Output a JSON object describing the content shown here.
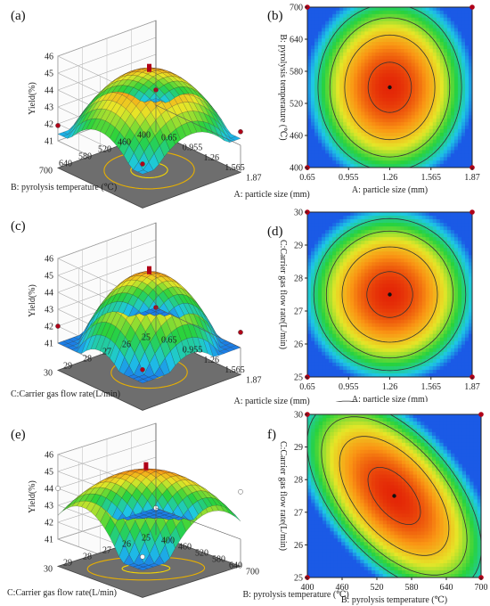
{
  "chart_data": [
    {
      "id": "a",
      "type": "surface3d",
      "panel_label": "(a)",
      "x_axis": {
        "label": "A: particle size (mm)",
        "ticks": [
          "0.65",
          "0.955",
          "1.26",
          "1.565",
          "1.87"
        ]
      },
      "y_axis": {
        "label": "B: pyrolysis temperature (℃)",
        "ticks": [
          "400",
          "460",
          "520",
          "580",
          "640",
          "700"
        ]
      },
      "z_axis": {
        "label": "Yield(%)",
        "ticks": [
          "41",
          "42",
          "43",
          "44",
          "45",
          "46"
        ]
      },
      "zlim": [
        41,
        46
      ],
      "peak": {
        "x": 1.26,
        "y": 550,
        "z": 45.2
      },
      "design_points": [
        {
          "x": 0.65,
          "y": 400,
          "z": 41.9
        },
        {
          "x": 1.87,
          "y": 400,
          "z": 41.8
        },
        {
          "x": 0.65,
          "y": 700,
          "z": 41.9
        },
        {
          "x": 1.87,
          "y": 700,
          "z": 42.0
        }
      ]
    },
    {
      "id": "b",
      "type": "contour",
      "panel_label": "(b)",
      "x_axis": {
        "label": "A: particle size (mm)",
        "ticks": [
          "0.65",
          "0.955",
          "1.26",
          "1.565",
          "1.87"
        ]
      },
      "y_axis": {
        "label": "B: pyrolysis temperature (℃)",
        "ticks": [
          "400",
          "460",
          "520",
          "580",
          "640",
          "700"
        ]
      },
      "center": {
        "x": 1.26,
        "y": 550
      },
      "color_max": "#e41f00",
      "color_min": "#1aa3e8"
    },
    {
      "id": "c",
      "type": "surface3d",
      "panel_label": "(c)",
      "x_axis": {
        "label": "A: particle size (mm)",
        "ticks": [
          "0.65",
          "0.955",
          "1.26",
          "1.565",
          "1.87"
        ]
      },
      "y_axis": {
        "label": "C:Carrier gas flow rate(L/min)",
        "ticks": [
          "25",
          "26",
          "27",
          "28",
          "29",
          "30"
        ]
      },
      "z_axis": {
        "label": "Yield(%)",
        "ticks": [
          "41",
          "42",
          "43",
          "44",
          "45",
          "46"
        ]
      },
      "zlim": [
        41,
        46
      ],
      "peak": {
        "x": 1.26,
        "y": 27.5,
        "z": 45.2
      },
      "design_points": [
        {
          "x": 0.65,
          "y": 25,
          "z": 41.0
        },
        {
          "x": 1.87,
          "y": 25,
          "z": 41.9
        },
        {
          "x": 0.65,
          "y": 30,
          "z": 42.0
        },
        {
          "x": 1.87,
          "y": 30,
          "z": 41.8
        }
      ]
    },
    {
      "id": "d",
      "type": "contour",
      "panel_label": "(d)",
      "x_axis": {
        "label": "A: particle size (mm)",
        "ticks": [
          "0.65",
          "0.955",
          "1.26",
          "1.565",
          "1.87"
        ]
      },
      "y_axis": {
        "label": "C:Carrier gas flow rate(L/min)",
        "ticks": [
          "25",
          "26",
          "27",
          "28",
          "29",
          "30"
        ]
      },
      "center": {
        "x": 1.26,
        "y": 27.5
      },
      "color_max": "#e41f00",
      "color_min": "#1aa3e8"
    },
    {
      "id": "e",
      "type": "surface3d",
      "panel_label": "(e)",
      "x_axis": {
        "label": "B: pyrolysis temperature (℃)",
        "ticks": [
          "400",
          "460",
          "520",
          "580",
          "640",
          "700"
        ]
      },
      "y_axis": {
        "label": "C:Carrier gas flow rate(L/min)",
        "ticks": [
          "25",
          "26",
          "27",
          "28",
          "29",
          "30"
        ]
      },
      "z_axis": {
        "label": "Yield(%)",
        "ticks": [
          "41",
          "42",
          "43",
          "44",
          "45",
          "46"
        ]
      },
      "zlim": [
        41,
        46
      ],
      "peak": {
        "x": 550,
        "y": 27.5,
        "z": 45.2
      },
      "design_points": [
        {
          "x": 400,
          "y": 25,
          "z": 41.0
        },
        {
          "x": 700,
          "y": 25,
          "z": 43.8
        },
        {
          "x": 400,
          "y": 30,
          "z": 44.0
        },
        {
          "x": 700,
          "y": 30,
          "z": 41.8
        }
      ]
    },
    {
      "id": "f",
      "type": "contour",
      "panel_label": "f)",
      "x_axis": {
        "label": "B: pyrolysis temperature (℃)",
        "ticks": [
          "400",
          "460",
          "520",
          "580",
          "640",
          "700"
        ]
      },
      "y_axis": {
        "label": "C:Carrier gas flow rate(L/min)",
        "ticks": [
          "25",
          "26",
          "27",
          "28",
          "29",
          "30"
        ]
      },
      "center": {
        "x": 550,
        "y": 27.5
      },
      "color_max": "#e41f00",
      "color_min": "#1aa3e8"
    }
  ]
}
